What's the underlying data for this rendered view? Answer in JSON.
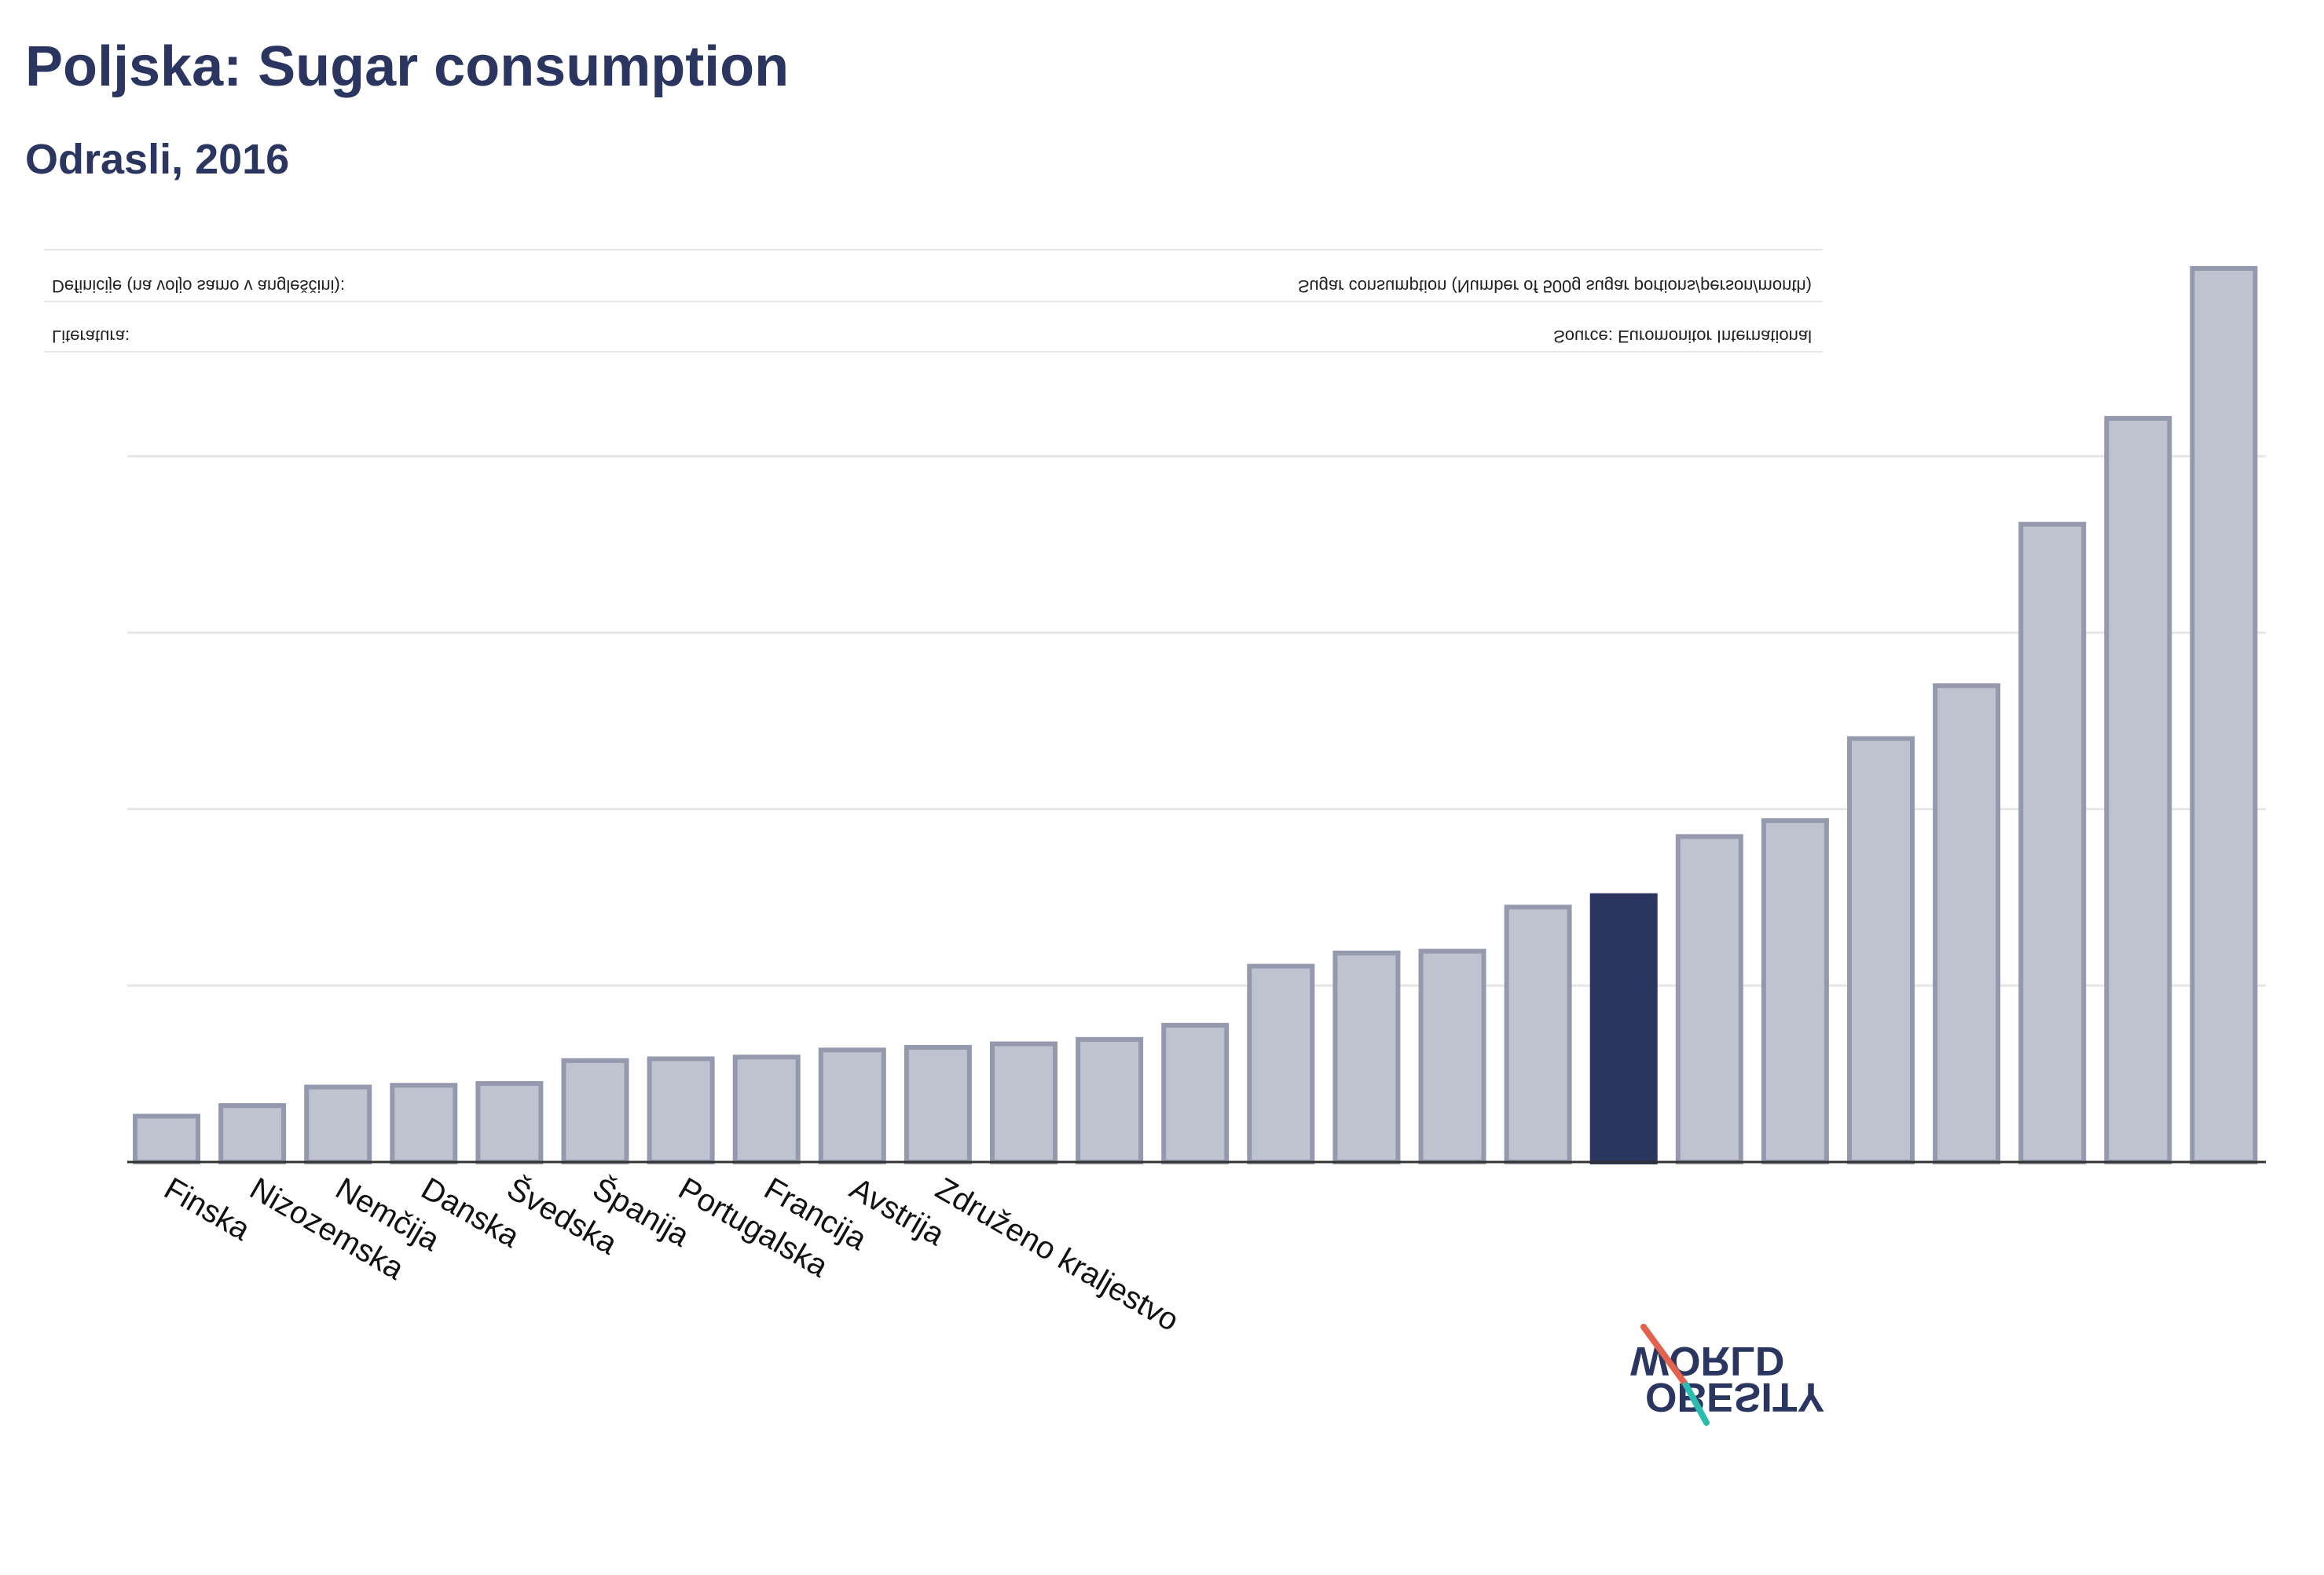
{
  "header": {
    "title": "Poljska: Sugar consumption",
    "subtitle": "Odrasli, 2016"
  },
  "notes": {
    "definitions_label": "Definicije (na voljo samo v angleščini):",
    "definitions_text": "Sugar consumption (Number of 500g sugar portions/person/month)",
    "source_label": "Literatura:",
    "source_text": "Source: Euromonitor International"
  },
  "logo": {
    "line1": "OBESITY",
    "line2": "WORLD"
  },
  "colors": {
    "bar": "#bfc2cf",
    "bar_border": "#9599ad",
    "highlight": "#2a3560",
    "title": "#2a3560",
    "grid": "#e6e6e6",
    "axis": "#333333",
    "logo_red": "#e2624e",
    "logo_teal": "#2bbcb0"
  },
  "chart_data": {
    "type": "bar",
    "title": "Poljska: Sugar consumption",
    "subtitle": "Odrasli, 2016",
    "categories": [
      "Finska",
      "Nizozemska",
      "Nemčija",
      "Danska",
      "Švedska",
      "Španija",
      "Portugalska",
      "Francija",
      "Avstrija",
      "Združeno kraljestvo",
      "",
      "",
      "",
      "",
      "",
      "",
      "",
      "",
      "",
      "",
      "",
      "",
      "",
      "",
      ""
    ],
    "values": [
      0.52,
      0.64,
      0.85,
      0.87,
      0.89,
      1.15,
      1.17,
      1.19,
      1.27,
      1.3,
      1.34,
      1.39,
      1.55,
      2.22,
      2.37,
      2.39,
      2.89,
      3.02,
      3.69,
      3.87,
      4.8,
      5.4,
      7.23,
      8.43,
      10.13
    ],
    "highlight_index": 17,
    "ylim": [
      0,
      10.2
    ],
    "grid": true,
    "xlabel": "",
    "ylabel": ""
  }
}
